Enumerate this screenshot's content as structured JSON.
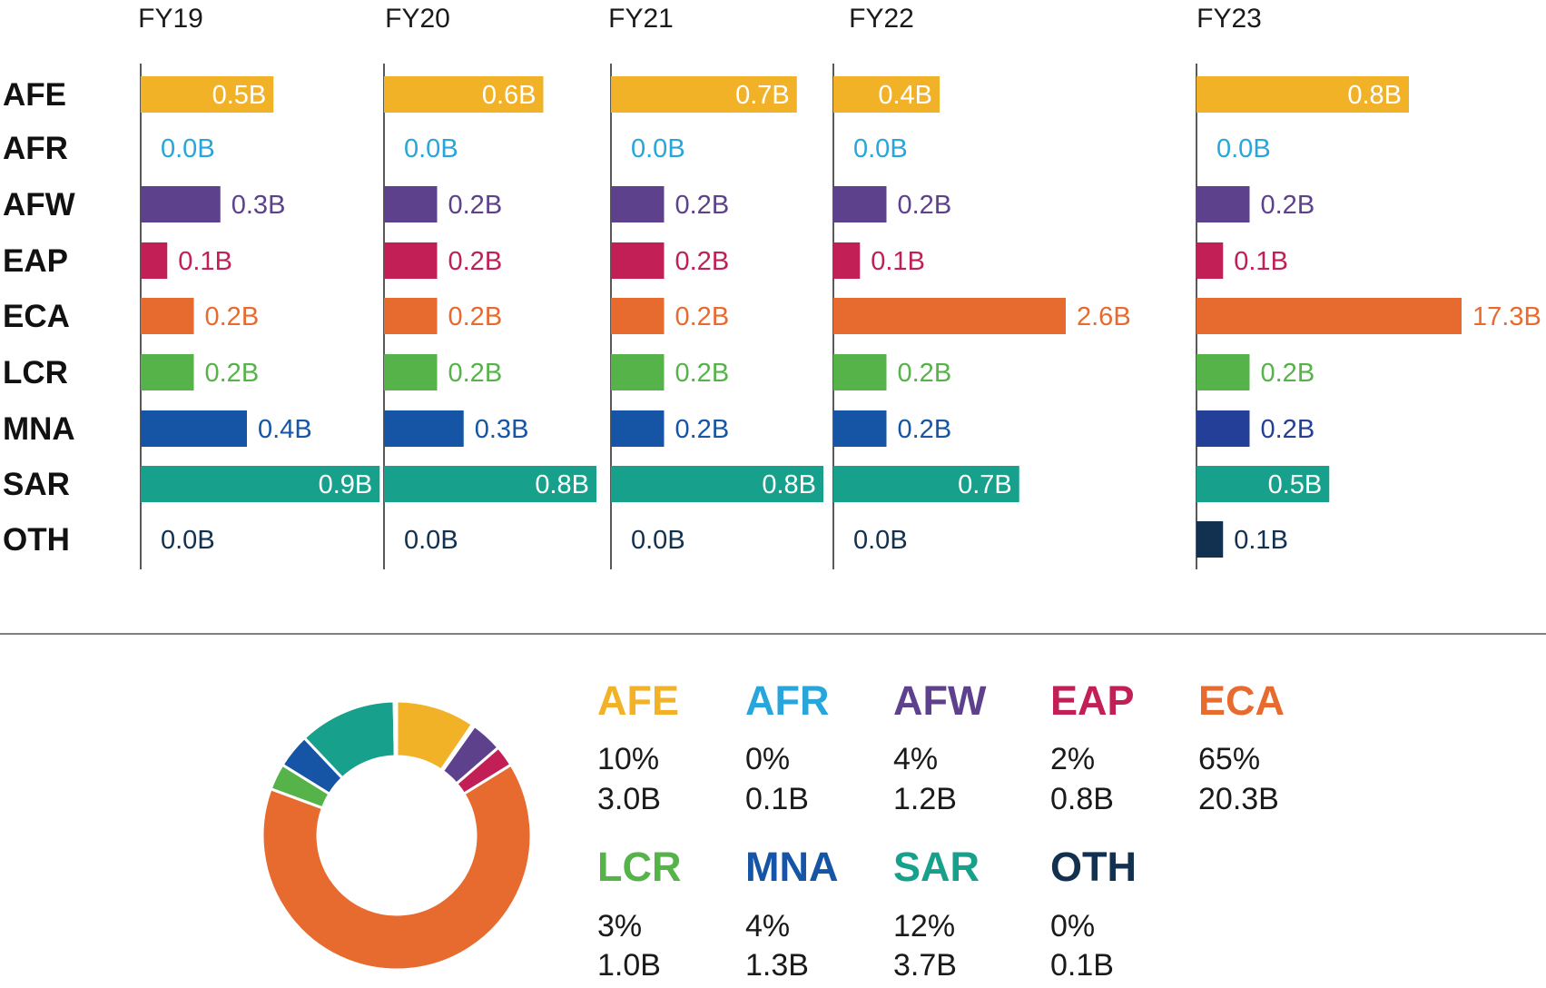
{
  "chart_data": [
    {
      "type": "bar",
      "orientation": "horizontal",
      "layout": "small-multiples",
      "title": "",
      "panels": [
        "FY19",
        "FY20",
        "FY21",
        "FY22",
        "FY23"
      ],
      "categories": [
        "AFE",
        "AFR",
        "AFW",
        "EAP",
        "ECA",
        "LCR",
        "MNA",
        "SAR",
        "OTH"
      ],
      "series": [
        {
          "name": "FY19",
          "values": [
            0.5,
            0.0,
            0.3,
            0.1,
            0.2,
            0.2,
            0.4,
            0.9,
            0.0
          ],
          "labels": [
            "0.5B",
            "0.0B",
            "0.3B",
            "0.1B",
            "0.2B",
            "0.2B",
            "0.4B",
            "0.9B",
            "0.0B"
          ]
        },
        {
          "name": "FY20",
          "values": [
            0.6,
            0.0,
            0.2,
            0.2,
            0.2,
            0.2,
            0.3,
            0.8,
            0.0
          ],
          "labels": [
            "0.6B",
            "0.0B",
            "0.2B",
            "0.2B",
            "0.2B",
            "0.2B",
            "0.3B",
            "0.8B",
            "0.0B"
          ]
        },
        {
          "name": "FY21",
          "values": [
            0.7,
            0.0,
            0.2,
            0.2,
            0.2,
            0.2,
            0.2,
            0.8,
            0.0
          ],
          "labels": [
            "0.7B",
            "0.0B",
            "0.2B",
            "0.2B",
            "0.2B",
            "0.2B",
            "0.2B",
            "0.8B",
            "0.0B"
          ]
        },
        {
          "name": "FY22",
          "values": [
            0.4,
            0.0,
            0.2,
            0.1,
            2.6,
            0.2,
            0.2,
            0.7,
            0.0
          ],
          "labels": [
            "0.4B",
            "0.0B",
            "0.2B",
            "0.1B",
            "2.6B",
            "0.2B",
            "0.2B",
            "0.7B",
            "0.0B"
          ]
        },
        {
          "name": "FY23",
          "values": [
            0.8,
            0.0,
            0.2,
            0.1,
            17.3,
            0.2,
            0.2,
            0.5,
            0.1
          ],
          "labels": [
            "0.8B",
            "0.0B",
            "0.2B",
            "0.1B",
            "17.3B",
            "0.2B",
            "0.2B",
            "0.5B",
            "0.1B"
          ]
        }
      ],
      "unit": "B",
      "inside_label_categories": [
        "AFE",
        "SAR"
      ]
    },
    {
      "type": "pie",
      "subtype": "donut",
      "title": "",
      "categories": [
        "AFE",
        "AFR",
        "AFW",
        "EAP",
        "ECA",
        "LCR",
        "MNA",
        "SAR",
        "OTH"
      ],
      "values": [
        3.0,
        0.1,
        1.2,
        0.8,
        20.3,
        1.0,
        1.3,
        3.7,
        0.1
      ],
      "percent_labels": [
        "10%",
        "0%",
        "4%",
        "2%",
        "65%",
        "3%",
        "4%",
        "12%",
        "0%"
      ],
      "value_labels": [
        "3.0B",
        "0.1B",
        "1.2B",
        "0.8B",
        "20.3B",
        "1.0B",
        "1.3B",
        "3.7B",
        "0.1B"
      ]
    }
  ],
  "colors": {
    "AFE": "#F2B227",
    "AFR": "#27A6DB",
    "AFW": "#5E418D",
    "EAP": "#C21F57",
    "ECA": "#E76A2F",
    "LCR": "#56B34A",
    "MNA": "#1655A6",
    "SAR": "#17A08B",
    "OTH": "#12304F",
    "axis": "#222222",
    "divider": "#555555",
    "inside_label": "#ffffff"
  },
  "panel_colors": {
    "FY23": {
      "MNA": "#243F97"
    }
  }
}
